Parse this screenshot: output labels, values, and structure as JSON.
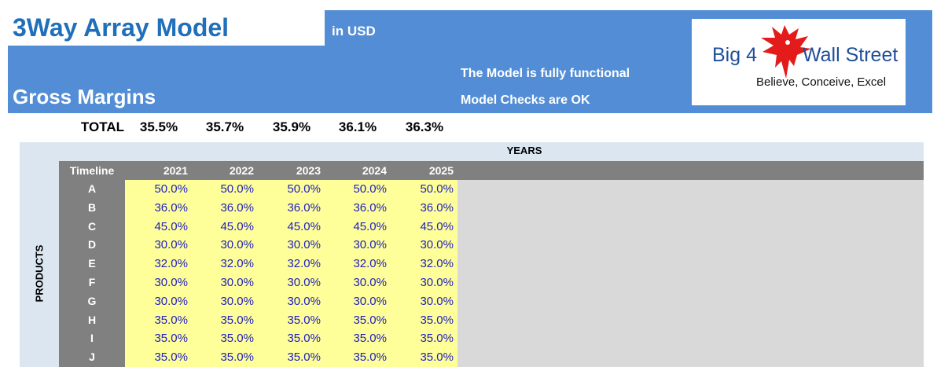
{
  "header": {
    "title": "3Way Array Model",
    "currency": "in USD",
    "subtitle": "Gross Margins",
    "status_functional": "The Model is fully functional",
    "status_checks": "Model Checks are OK"
  },
  "logo": {
    "line1_a": "Big 4",
    "line1_b": "Wall Street",
    "tagline": "Believe, Conceive, Excel",
    "icon": "red-eagle-icon",
    "colors": {
      "eagle": "#e31b1b",
      "text": "#1f4e9a"
    }
  },
  "totals": {
    "label": "TOTAL",
    "values": [
      "35.5%",
      "35.7%",
      "35.9%",
      "36.1%",
      "36.3%"
    ]
  },
  "grid": {
    "years_label": "YEARS",
    "timeline_label": "Timeline",
    "products_label": "PRODUCTS",
    "years": [
      "2021",
      "2022",
      "2023",
      "2024",
      "2025"
    ],
    "rows": [
      {
        "product": "A",
        "values": [
          "50.0%",
          "50.0%",
          "50.0%",
          "50.0%",
          "50.0%"
        ]
      },
      {
        "product": "B",
        "values": [
          "36.0%",
          "36.0%",
          "36.0%",
          "36.0%",
          "36.0%"
        ]
      },
      {
        "product": "C",
        "values": [
          "45.0%",
          "45.0%",
          "45.0%",
          "45.0%",
          "45.0%"
        ]
      },
      {
        "product": "D",
        "values": [
          "30.0%",
          "30.0%",
          "30.0%",
          "30.0%",
          "30.0%"
        ]
      },
      {
        "product": "E",
        "values": [
          "32.0%",
          "32.0%",
          "32.0%",
          "32.0%",
          "32.0%"
        ]
      },
      {
        "product": "F",
        "values": [
          "30.0%",
          "30.0%",
          "30.0%",
          "30.0%",
          "30.0%"
        ]
      },
      {
        "product": "G",
        "values": [
          "30.0%",
          "30.0%",
          "30.0%",
          "30.0%",
          "30.0%"
        ]
      },
      {
        "product": "H",
        "values": [
          "35.0%",
          "35.0%",
          "35.0%",
          "35.0%",
          "35.0%"
        ]
      },
      {
        "product": "I",
        "values": [
          "35.0%",
          "35.0%",
          "35.0%",
          "35.0%",
          "35.0%"
        ]
      },
      {
        "product": "J",
        "values": [
          "35.0%",
          "35.0%",
          "35.0%",
          "35.0%",
          "35.0%"
        ]
      }
    ]
  },
  "colors": {
    "header_band": "#538dd5",
    "title_text": "#1f6fba",
    "input_cell": "#ffff99",
    "input_text": "#2020c0",
    "label_col": "#808080"
  }
}
